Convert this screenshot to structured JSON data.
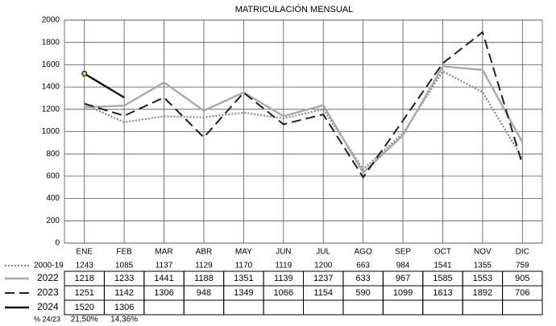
{
  "chart_data": {
    "type": "line",
    "title": "MATRICULACIÓN MENSUAL",
    "categories": [
      "ENE",
      "FEB",
      "MAR",
      "ABR",
      "MAY",
      "JUN",
      "JUL",
      "AGO",
      "SEP",
      "OCT",
      "NOV",
      "DIC"
    ],
    "series": [
      {
        "name": "2000-19",
        "color": "#888888",
        "dash": "dotted",
        "values": [
          1243,
          1085,
          1137,
          1129,
          1170,
          1119,
          1200,
          663,
          984,
          1541,
          1355,
          759
        ]
      },
      {
        "name": "2022",
        "color": "#aaaaaa",
        "dash": "solid",
        "values": [
          1218,
          1233,
          1441,
          1188,
          1351,
          1139,
          1237,
          633,
          967,
          1585,
          1553,
          905
        ]
      },
      {
        "name": "2023",
        "color": "#222222",
        "dash": "dashed",
        "values": [
          1251,
          1142,
          1306,
          948,
          1349,
          1066,
          1154,
          590,
          1099,
          1613,
          1892,
          706
        ]
      },
      {
        "name": "2024",
        "color": "#111111",
        "dash": "solid",
        "values": [
          1520,
          1306,
          null,
          null,
          null,
          null,
          null,
          null,
          null,
          null,
          null,
          null
        ]
      }
    ],
    "pct_row": {
      "label": "% 24/23",
      "values": [
        "21,50%",
        "14,36%"
      ]
    },
    "ylim": [
      0,
      2000
    ],
    "yticks": [
      0,
      200,
      400,
      600,
      800,
      1000,
      1200,
      1400,
      1600,
      1800,
      2000
    ],
    "grid": true
  }
}
